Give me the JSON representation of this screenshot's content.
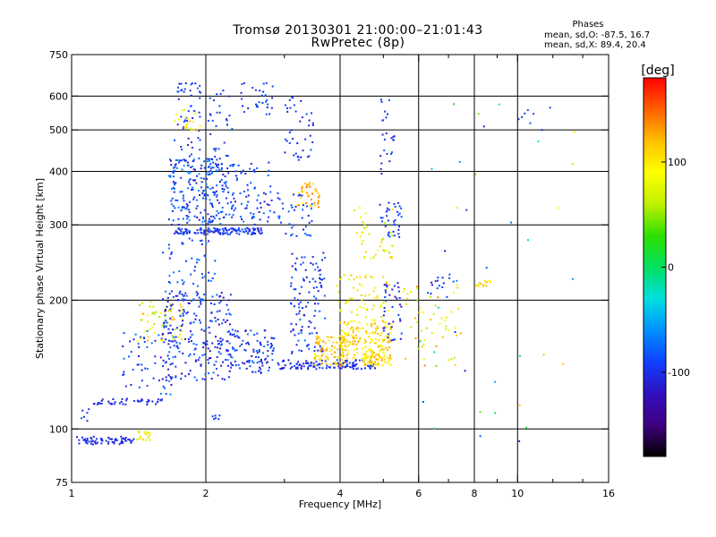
{
  "title": {
    "line1": "Tromsø 20130301 21:00:00–21:01:43",
    "line2": "RwPretec (8p)"
  },
  "phases": {
    "title": "Phases",
    "o_line": "mean, sd,O: -87.5, 16.7",
    "x_line": "mean, sd,X:  89.4, 20.4"
  },
  "colorbar": {
    "label": "[deg]",
    "ticks": [
      "100",
      "0",
      "-100"
    ],
    "tick_values": [
      100,
      0,
      -100
    ],
    "range": [
      -180,
      180
    ],
    "colors": [
      "#000000",
      "#400080",
      "#3010c0",
      "#1040ff",
      "#0090ff",
      "#00e0e0",
      "#00e060",
      "#30e000",
      "#c0f000",
      "#ffff00",
      "#ffc000",
      "#ff6000",
      "#ff0000"
    ]
  },
  "chart_data": {
    "type": "scatter",
    "xlabel": "Frequency [MHz]",
    "ylabel": "Stationary phase Virtual Height [km]",
    "xscale": "log",
    "yscale": "log",
    "xlim": [
      1,
      16
    ],
    "ylim": [
      75,
      750
    ],
    "xticks": [
      1,
      2,
      4,
      6,
      8,
      10,
      16
    ],
    "xtick_labels": [
      "1",
      "2",
      "4",
      "6",
      "8",
      "10",
      "16"
    ],
    "xminor": [
      3,
      5,
      7,
      9,
      12,
      14
    ],
    "xgrid": [
      2,
      4,
      6,
      8,
      10
    ],
    "yticks": [
      75,
      100,
      200,
      300,
      400,
      500,
      600,
      750
    ],
    "ytick_labels": [
      "75",
      "100",
      "200",
      "300",
      "400",
      "500",
      "600",
      "750"
    ],
    "ygrid": [
      100,
      200,
      300,
      400,
      500,
      600
    ],
    "grid": true,
    "color_by": "phase (deg)",
    "clusters": [
      {
        "f": [
          1.0,
          1.38
        ],
        "h": [
          92,
          96
        ],
        "n": 70,
        "phase": [
          -110,
          -95
        ]
      },
      {
        "f": [
          1.38,
          1.5
        ],
        "h": [
          94,
          99
        ],
        "n": 18,
        "phase": [
          60,
          120
        ]
      },
      {
        "f": [
          1.05,
          1.12
        ],
        "h": [
          104,
          112
        ],
        "n": 6,
        "phase": [
          -110,
          -80
        ]
      },
      {
        "f": [
          1.12,
          1.6
        ],
        "h": [
          114,
          118
        ],
        "n": 45,
        "phase": [
          -115,
          -90
        ]
      },
      {
        "f": [
          1.3,
          1.7
        ],
        "h": [
          120,
          170
        ],
        "n": 60,
        "phase": [
          -120,
          -60
        ]
      },
      {
        "f": [
          1.4,
          1.8
        ],
        "h": [
          160,
          200
        ],
        "n": 60,
        "phase": [
          50,
          130
        ]
      },
      {
        "f": [
          1.6,
          2.3
        ],
        "h": [
          130,
          210
        ],
        "n": 220,
        "phase": [
          -125,
          -70
        ]
      },
      {
        "f": [
          1.6,
          2.1
        ],
        "h": [
          200,
          280
        ],
        "n": 60,
        "phase": [
          -110,
          -60
        ]
      },
      {
        "f": [
          1.7,
          2.7
        ],
        "h": [
          285,
          295
        ],
        "n": 130,
        "phase": [
          -115,
          -75
        ]
      },
      {
        "f": [
          1.65,
          2.2
        ],
        "h": [
          300,
          430
        ],
        "n": 220,
        "phase": [
          -120,
          -60
        ]
      },
      {
        "f": [
          1.7,
          1.95
        ],
        "h": [
          430,
          650
        ],
        "n": 50,
        "phase": [
          -110,
          -80
        ]
      },
      {
        "f": [
          1.7,
          1.95
        ],
        "h": [
          500,
          560
        ],
        "n": 20,
        "phase": [
          70,
          120
        ]
      },
      {
        "f": [
          2.0,
          2.3
        ],
        "h": [
          420,
          620
        ],
        "n": 30,
        "phase": [
          -110,
          -80
        ]
      },
      {
        "f": [
          2.4,
          2.85
        ],
        "h": [
          540,
          650
        ],
        "n": 30,
        "phase": [
          -110,
          -80
        ]
      },
      {
        "f": [
          2.2,
          2.85
        ],
        "h": [
          300,
          420
        ],
        "n": 90,
        "phase": [
          -115,
          -70
        ]
      },
      {
        "f": [
          2.2,
          2.85
        ],
        "h": [
          135,
          170
        ],
        "n": 110,
        "phase": [
          -120,
          -70
        ]
      },
      {
        "f": [
          2.05,
          2.15
        ],
        "h": [
          105,
          108
        ],
        "n": 6,
        "phase": [
          -110,
          -90
        ]
      },
      {
        "f": [
          2.9,
          4.8
        ],
        "h": [
          138,
          145
        ],
        "n": 120,
        "phase": [
          -115,
          -85
        ]
      },
      {
        "f": [
          3.1,
          3.7
        ],
        "h": [
          150,
          260
        ],
        "n": 110,
        "phase": [
          -120,
          -70
        ]
      },
      {
        "f": [
          3.0,
          3.5
        ],
        "h": [
          420,
          600
        ],
        "n": 40,
        "phase": [
          -115,
          -80
        ]
      },
      {
        "f": [
          3.2,
          3.6
        ],
        "h": [
          330,
          380
        ],
        "n": 40,
        "phase": [
          90,
          150
        ]
      },
      {
        "f": [
          2.9,
          3.5
        ],
        "h": [
          280,
          360
        ],
        "n": 40,
        "phase": [
          -110,
          -70
        ]
      },
      {
        "f": [
          3.5,
          4.1
        ],
        "h": [
          140,
          165
        ],
        "n": 80,
        "phase": [
          80,
          140
        ]
      },
      {
        "f": [
          4.0,
          5.2
        ],
        "h": [
          145,
          180
        ],
        "n": 180,
        "phase": [
          80,
          130
        ]
      },
      {
        "f": [
          4.5,
          5.2
        ],
        "h": [
          140,
          150
        ],
        "n": 60,
        "phase": [
          90,
          130
        ]
      },
      {
        "f": [
          3.9,
          5.2
        ],
        "h": [
          180,
          230
        ],
        "n": 60,
        "phase": [
          60,
          120
        ]
      },
      {
        "f": [
          5.0,
          5.5
        ],
        "h": [
          160,
          220
        ],
        "n": 40,
        "phase": [
          -130,
          -80
        ]
      },
      {
        "f": [
          4.3,
          5.3
        ],
        "h": [
          250,
          330
        ],
        "n": 40,
        "phase": [
          50,
          120
        ]
      },
      {
        "f": [
          4.9,
          5.5
        ],
        "h": [
          280,
          340
        ],
        "n": 35,
        "phase": [
          -110,
          -80
        ]
      },
      {
        "f": [
          4.9,
          5.3
        ],
        "h": [
          380,
          600
        ],
        "n": 25,
        "phase": [
          -110,
          -80
        ]
      },
      {
        "f": [
          5.5,
          7.5
        ],
        "h": [
          140,
          220
        ],
        "n": 50,
        "phase": [
          40,
          140
        ]
      },
      {
        "f": [
          6.3,
          7.2
        ],
        "h": [
          200,
          230
        ],
        "n": 15,
        "phase": [
          -110,
          -80
        ]
      },
      {
        "f": [
          8.0,
          8.7
        ],
        "h": [
          215,
          225
        ],
        "n": 15,
        "phase": [
          90,
          130
        ]
      },
      {
        "f": [
          10.0,
          12.0
        ],
        "h": [
          500,
          600
        ],
        "n": 8,
        "phase": [
          -110,
          -80
        ]
      },
      {
        "f": [
          6.0,
          14.0
        ],
        "h": [
          90,
          700
        ],
        "n": 40,
        "phase": [
          -120,
          140
        ]
      }
    ]
  }
}
